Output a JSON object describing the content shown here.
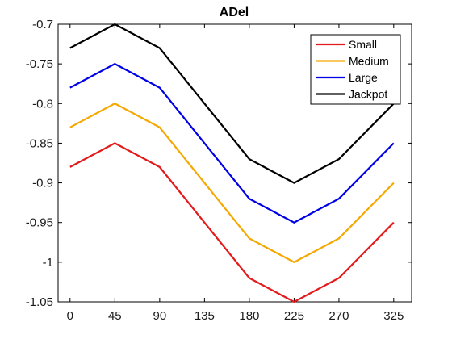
{
  "chart_data": {
    "type": "line",
    "title": "ADel",
    "xlabel": "",
    "ylabel": "",
    "x": [
      0,
      45,
      90,
      180,
      225,
      270,
      325
    ],
    "xticks": [
      "0",
      "45",
      "90",
      "135",
      "180",
      "225",
      "270",
      "325"
    ],
    "yticks": [
      "-0.7",
      "-0.75",
      "-0.8",
      "-0.85",
      "-0.9",
      "-0.95",
      "-1",
      "-1.05"
    ],
    "ylim": [
      -1.05,
      -0.7
    ],
    "grid": false,
    "legend_position": "top-right",
    "series": [
      {
        "name": "Small",
        "color": "#e31a1c",
        "values": [
          -0.88,
          -0.85,
          -0.88,
          -1.02,
          -1.05,
          -1.02,
          -0.95
        ]
      },
      {
        "name": "Medium",
        "color": "#f5a800",
        "values": [
          -0.83,
          -0.8,
          -0.83,
          -0.97,
          -1.0,
          -0.97,
          -0.9
        ]
      },
      {
        "name": "Large",
        "color": "#0000e6",
        "values": [
          -0.78,
          -0.75,
          -0.78,
          -0.92,
          -0.95,
          -0.92,
          -0.85
        ]
      },
      {
        "name": "Jackpot",
        "color": "#000000",
        "values": [
          -0.73,
          -0.7,
          -0.73,
          -0.87,
          -0.9,
          -0.87,
          -0.8
        ]
      }
    ]
  }
}
